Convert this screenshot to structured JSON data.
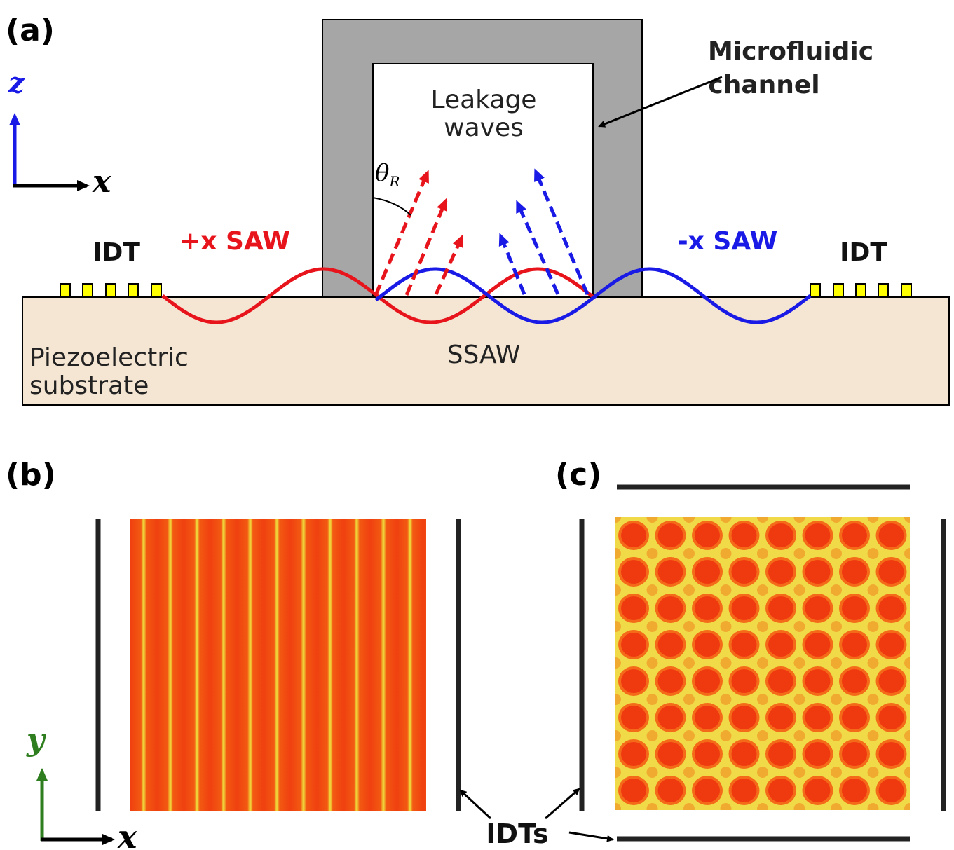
{
  "panels": {
    "a": "(a)",
    "b": "(b)",
    "c": "(c)"
  },
  "panel_a": {
    "axis_vertical": "z",
    "axis_horizontal": "x",
    "microfluidic_channel": "Microfluidic channel",
    "leakage_waves": "Leakage waves",
    "theta": "θ",
    "theta_sub": "R",
    "idt_left": "IDT",
    "idt_right": "IDT",
    "saw_plus": "+x SAW",
    "saw_minus": "-x SAW",
    "ssaw": "SSAW",
    "substrate": "Piezoelectric substrate"
  },
  "panel_bc": {
    "axis_vertical": "y",
    "axis_horizontal": "x",
    "idts": "IDTs"
  },
  "colors": {
    "red_wave": "#e8141c",
    "blue_wave": "#1a1ae6",
    "channel_gray": "#a6a6a6",
    "substrate": "#f5e6d3",
    "idt_yellow": "#ffff00",
    "field_base": "#f04010",
    "field_node": "#f0d838",
    "green_axis": "#2e7d1e"
  }
}
